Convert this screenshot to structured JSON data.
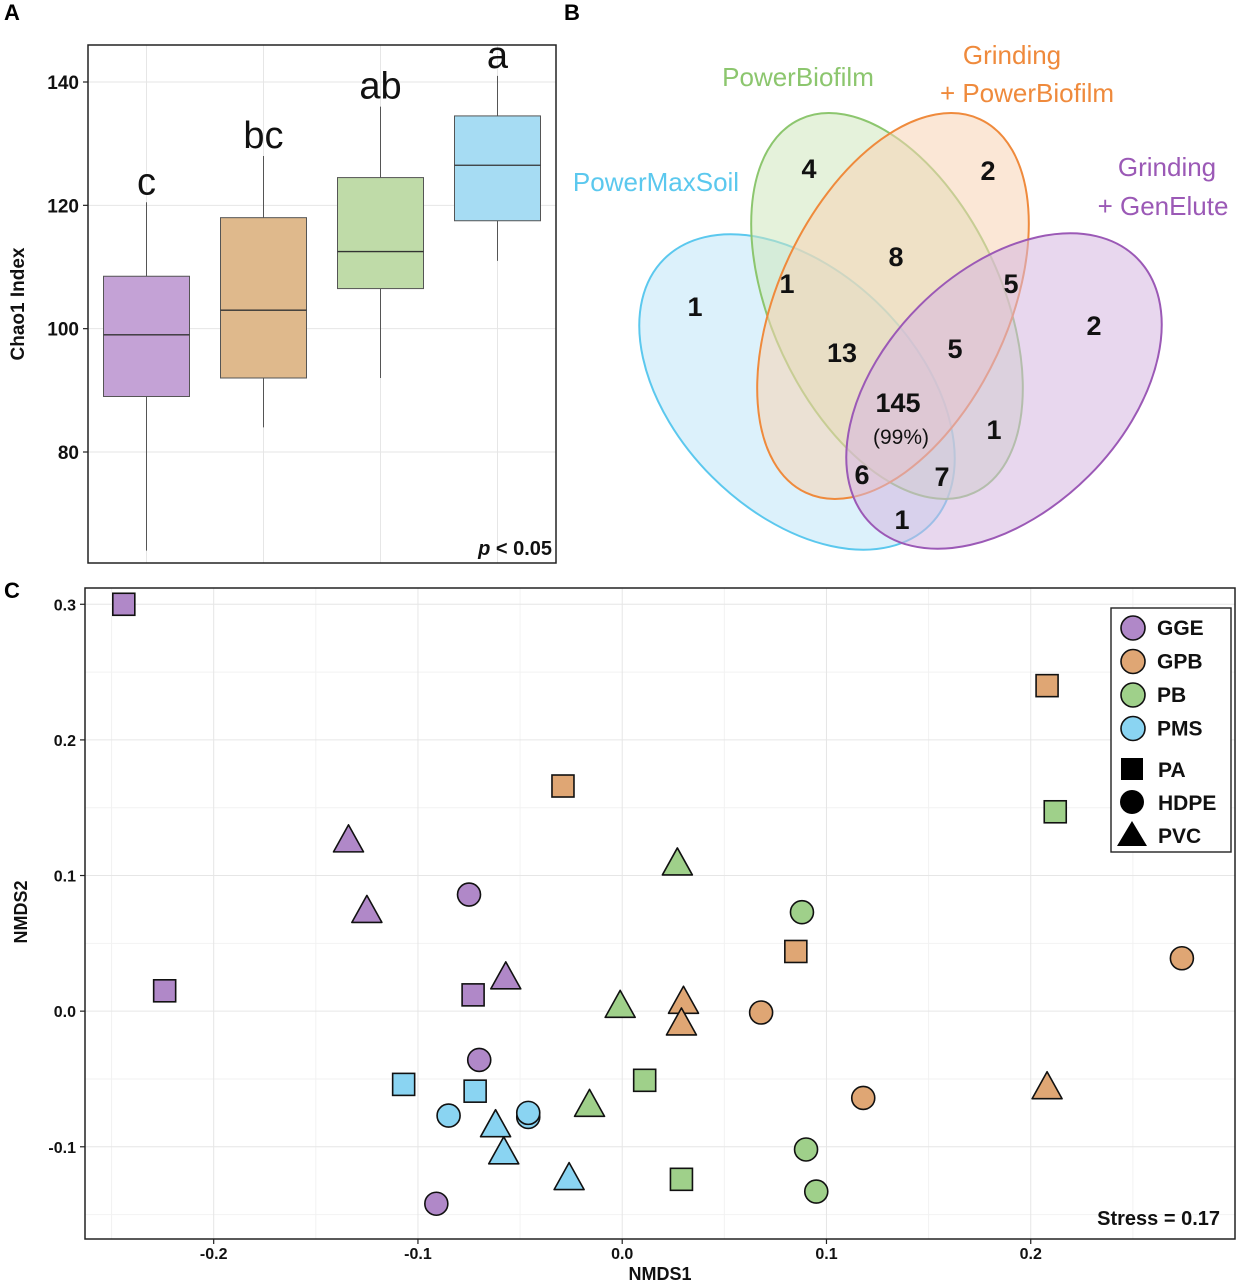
{
  "chart_data": [
    {
      "panel": "A",
      "type": "box",
      "ylabel": "Chao1 Index",
      "yticks": [
        80,
        100,
        120,
        140
      ],
      "ylim": [
        62,
        146
      ],
      "annotation_prefix": "p",
      "annotation_suffix": " < 0.05",
      "boxes": [
        {
          "group": "GGE",
          "color": "#c4a2d6",
          "whisker_low": 64,
          "q1": 89,
          "median": 99,
          "q3": 108.5,
          "whisker_high": 120.5,
          "letter": "c"
        },
        {
          "group": "GPB",
          "color": "#dfb98c",
          "whisker_low": 84,
          "q1": 92,
          "median": 103,
          "q3": 118,
          "whisker_high": 128,
          "letter": "bc"
        },
        {
          "group": "PB",
          "color": "#bfdba8",
          "whisker_low": 92,
          "q1": 106.5,
          "median": 112.5,
          "q3": 124.5,
          "whisker_high": 136,
          "letter": "ab"
        },
        {
          "group": "PMS",
          "color": "#a6dcf3",
          "whisker_low": 111,
          "q1": 117.5,
          "median": 126.5,
          "q3": 134.5,
          "whisker_high": 141,
          "letter": "a"
        }
      ]
    },
    {
      "panel": "B",
      "type": "venn",
      "sets": [
        {
          "name": "PowerMaxSoil",
          "lines": [
            "PowerMaxSoil"
          ],
          "color": "#5bc8ee",
          "fill": "#bfe6f7"
        },
        {
          "name": "PowerBiofilm",
          "lines": [
            "PowerBiofilm"
          ],
          "color": "#8cc66e",
          "fill": "#cfe7bd"
        },
        {
          "name": "Grinding + PowerBiofilm",
          "lines": [
            "Grinding",
            "+ PowerBiofilm"
          ],
          "color": "#ef8a3c",
          "fill": "#f7d4b4"
        },
        {
          "name": "Grinding + GenElute",
          "lines": [
            "Grinding",
            "+ GenElute"
          ],
          "color": "#9b59b6",
          "fill": "#d6b6e0"
        }
      ],
      "regions": [
        {
          "sets": "PMS",
          "count": "1"
        },
        {
          "sets": "PB",
          "count": "4"
        },
        {
          "sets": "GPB",
          "count": "2"
        },
        {
          "sets": "GGE",
          "count": "2"
        },
        {
          "sets": "PMS+PB",
          "count": "1"
        },
        {
          "sets": "PB+GPB",
          "count": "8"
        },
        {
          "sets": "GPB+GGE",
          "count": "5"
        },
        {
          "sets": "PMS+PB+GPB",
          "count": "13"
        },
        {
          "sets": "PB+GPB+GGE",
          "count": "5"
        },
        {
          "sets": "ALL",
          "count": "145",
          "percent": "(99%)"
        },
        {
          "sets": "PB+GGE",
          "count": "1"
        },
        {
          "sets": "PMS+PB+GGE",
          "count": "7"
        },
        {
          "sets": "PMS+GPB+GGE",
          "count": "6"
        },
        {
          "sets": "PMS+GGE",
          "count": "1"
        }
      ]
    },
    {
      "panel": "C",
      "type": "scatter",
      "xlabel": "NMDS1",
      "ylabel": "NMDS2",
      "xlim": [
        -0.263,
        0.3
      ],
      "ylim": [
        -0.168,
        0.312
      ],
      "xticks": [
        -0.2,
        -0.1,
        0.0,
        0.1,
        0.2
      ],
      "yticks": [
        -0.1,
        0.0,
        0.1,
        0.2,
        0.3
      ],
      "tick_labels_x": [
        "-0.2",
        "-0.1",
        "0.0",
        "0.1",
        "0.2"
      ],
      "tick_labels_y": [
        "-0.1",
        "0.0",
        "0.1",
        "0.2",
        "0.3"
      ],
      "annotation": "Stress = 0.17",
      "colors": {
        "GGE": "#b088c8",
        "GPB": "#dfa674",
        "PB": "#9fd08a",
        "PMS": "#8ad4f2"
      },
      "legend_colors": [
        {
          "label": "GGE",
          "key": "GGE"
        },
        {
          "label": "GPB",
          "key": "GPB"
        },
        {
          "label": "PB",
          "key": "PB"
        },
        {
          "label": "PMS",
          "key": "PMS"
        }
      ],
      "legend_shapes": [
        {
          "label": "PA",
          "shape": "square"
        },
        {
          "label": "HDPE",
          "shape": "circle"
        },
        {
          "label": "PVC",
          "shape": "triangle"
        }
      ],
      "points": [
        {
          "x": -0.244,
          "y": 0.3,
          "g": "GGE",
          "s": "square"
        },
        {
          "x": -0.224,
          "y": 0.015,
          "g": "GGE",
          "s": "square"
        },
        {
          "x": -0.073,
          "y": 0.012,
          "g": "GGE",
          "s": "square"
        },
        {
          "x": -0.075,
          "y": 0.086,
          "g": "GGE",
          "s": "circle"
        },
        {
          "x": -0.07,
          "y": -0.036,
          "g": "GGE",
          "s": "circle"
        },
        {
          "x": -0.091,
          "y": -0.142,
          "g": "GGE",
          "s": "circle"
        },
        {
          "x": -0.134,
          "y": 0.125,
          "g": "GGE",
          "s": "triangle"
        },
        {
          "x": -0.125,
          "y": 0.073,
          "g": "GGE",
          "s": "triangle"
        },
        {
          "x": -0.057,
          "y": 0.024,
          "g": "GGE",
          "s": "triangle"
        },
        {
          "x": -0.029,
          "y": 0.166,
          "g": "GPB",
          "s": "square"
        },
        {
          "x": 0.208,
          "y": 0.24,
          "g": "GPB",
          "s": "square"
        },
        {
          "x": 0.085,
          "y": 0.044,
          "g": "GPB",
          "s": "square"
        },
        {
          "x": 0.068,
          "y": -0.001,
          "g": "GPB",
          "s": "circle"
        },
        {
          "x": 0.118,
          "y": -0.064,
          "g": "GPB",
          "s": "circle"
        },
        {
          "x": 0.274,
          "y": 0.039,
          "g": "GPB",
          "s": "circle"
        },
        {
          "x": 0.03,
          "y": 0.006,
          "g": "GPB",
          "s": "triangle"
        },
        {
          "x": 0.029,
          "y": -0.01,
          "g": "GPB",
          "s": "triangle"
        },
        {
          "x": 0.208,
          "y": -0.057,
          "g": "GPB",
          "s": "triangle"
        },
        {
          "x": 0.011,
          "y": -0.051,
          "g": "PB",
          "s": "square"
        },
        {
          "x": 0.029,
          "y": -0.124,
          "g": "PB",
          "s": "square"
        },
        {
          "x": 0.212,
          "y": 0.147,
          "g": "PB",
          "s": "square"
        },
        {
          "x": 0.088,
          "y": 0.073,
          "g": "PB",
          "s": "circle"
        },
        {
          "x": 0.09,
          "y": -0.102,
          "g": "PB",
          "s": "circle"
        },
        {
          "x": 0.095,
          "y": -0.133,
          "g": "PB",
          "s": "circle"
        },
        {
          "x": 0.027,
          "y": 0.108,
          "g": "PB",
          "s": "triangle"
        },
        {
          "x": -0.001,
          "y": 0.003,
          "g": "PB",
          "s": "triangle"
        },
        {
          "x": -0.016,
          "y": -0.07,
          "g": "PB",
          "s": "triangle"
        },
        {
          "x": -0.107,
          "y": -0.054,
          "g": "PMS",
          "s": "square"
        },
        {
          "x": -0.072,
          "y": -0.059,
          "g": "PMS",
          "s": "square"
        },
        {
          "x": -0.085,
          "y": -0.077,
          "g": "PMS",
          "s": "circle"
        },
        {
          "x": -0.046,
          "y": -0.078,
          "g": "PMS",
          "s": "circle"
        },
        {
          "x": -0.046,
          "y": -0.075,
          "g": "PMS",
          "s": "circle"
        },
        {
          "x": -0.062,
          "y": -0.085,
          "g": "PMS",
          "s": "triangle"
        },
        {
          "x": -0.058,
          "y": -0.105,
          "g": "PMS",
          "s": "triangle"
        },
        {
          "x": -0.026,
          "y": -0.124,
          "g": "PMS",
          "s": "triangle"
        }
      ]
    }
  ]
}
